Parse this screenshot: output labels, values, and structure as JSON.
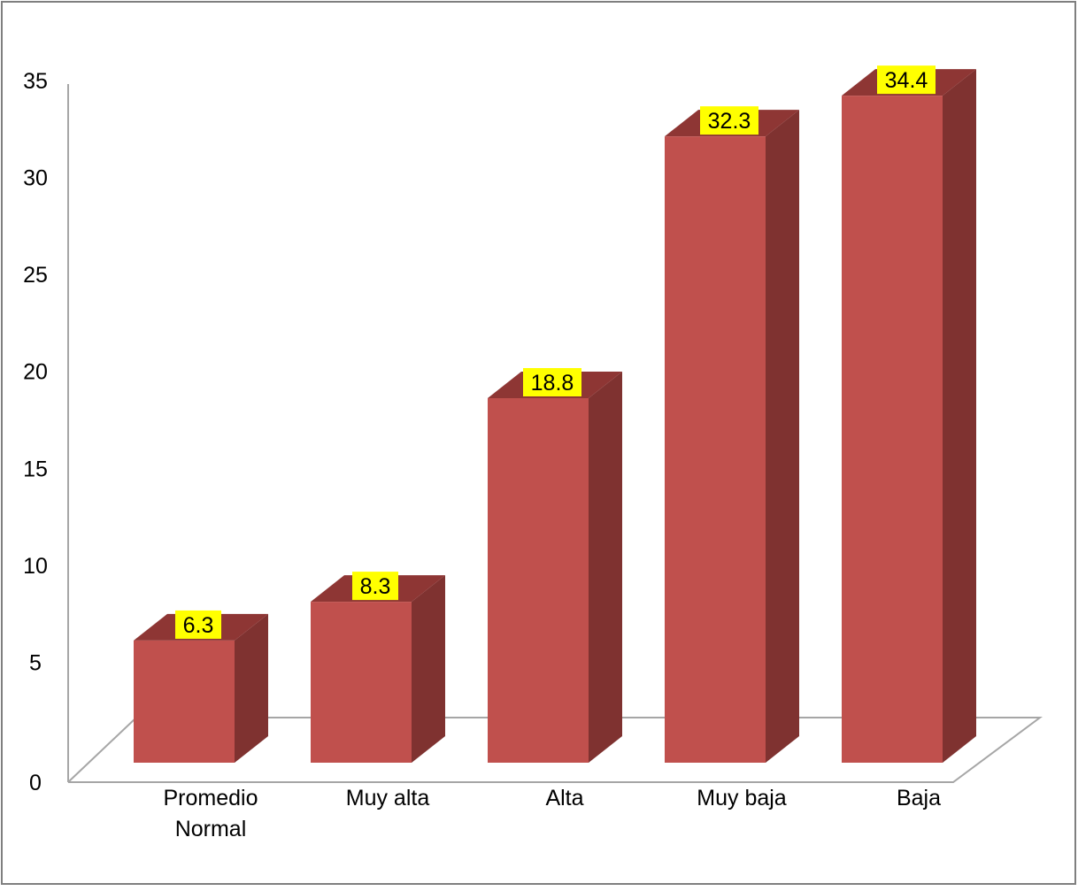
{
  "chart_data": {
    "type": "bar",
    "style": "3d-column",
    "categories": [
      "Promedio Normal",
      "Muy alta",
      "Alta",
      "Muy baja",
      "Baja"
    ],
    "category_lines": [
      [
        "Promedio",
        "Normal"
      ],
      [
        "Muy alta"
      ],
      [
        "Alta"
      ],
      [
        "Muy baja"
      ],
      [
        "Baja"
      ]
    ],
    "values": [
      6.3,
      8.3,
      18.8,
      32.3,
      34.4
    ],
    "value_labels": [
      "6.3",
      "8.3",
      "18.8",
      "32.3",
      "34.4"
    ],
    "y_ticks": [
      "0",
      "5",
      "10",
      "15",
      "20",
      "25",
      "30",
      "35"
    ],
    "ylim": [
      0,
      35
    ],
    "grid": false,
    "legend": "none",
    "colors": {
      "bar_front": "#C0504D",
      "bar_side": "#7F3230",
      "bar_top": "#8E3634",
      "label_background": "#FFFF00",
      "axis": "#A6A6A6",
      "frame": "#7F7F7F"
    }
  }
}
